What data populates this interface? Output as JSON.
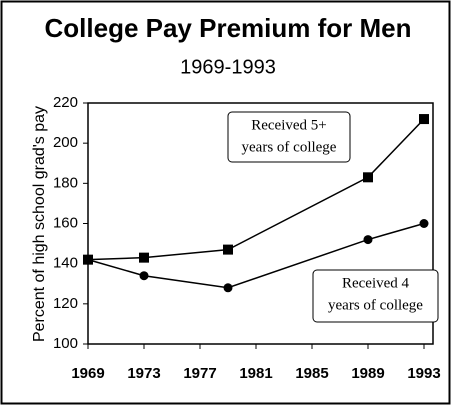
{
  "chart_data": {
    "type": "line",
    "title": "College Pay Premium for Men",
    "subtitle": "1969-1993",
    "y_label": "Percent of high school grad's pay",
    "x": [
      1969,
      1973,
      1979,
      1989,
      1993
    ],
    "series": [
      {
        "marker": "square",
        "color": "#000000",
        "values": [
          142,
          143,
          147,
          183,
          212
        ]
      },
      {
        "marker": "circle",
        "color": "#000000",
        "values": [
          142,
          134,
          128,
          152,
          160
        ]
      }
    ],
    "annotations": [
      [
        "Received 5+",
        "years of college"
      ],
      [
        "Received 4",
        "years of college"
      ]
    ],
    "xlim": [
      1969,
      1993
    ],
    "xticks": [
      1969,
      1973,
      1977,
      1981,
      1985,
      1989,
      1993
    ],
    "ylim": [
      100,
      220
    ],
    "yticks": [
      100,
      120,
      140,
      160,
      180,
      200,
      220
    ],
    "grid": false
  }
}
